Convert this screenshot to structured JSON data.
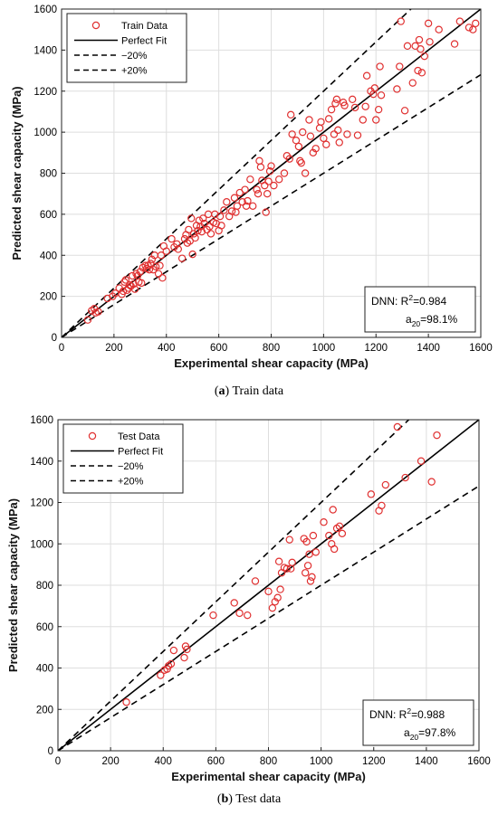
{
  "chart_data": [
    {
      "type": "scatter",
      "caption_letter": "a",
      "caption_text": "Train data",
      "xlabel": "Experimental shear capacity (MPa)",
      "ylabel": "Predicted shear capacity (MPa)",
      "xlim": [
        0,
        1600
      ],
      "ylim": [
        0,
        1600
      ],
      "xticks": [
        0,
        200,
        400,
        600,
        800,
        1000,
        1200,
        1400,
        1600
      ],
      "yticks": [
        0,
        200,
        400,
        600,
        800,
        1000,
        1200,
        1400,
        1600
      ],
      "grid": true,
      "legend_position": "top-left",
      "legend": [
        "Train Data",
        "Perfect Fit",
        "−20%",
        "+20%"
      ],
      "annotation_model": "DNN: R",
      "annotation_r2": "=0.984",
      "annotation_a20_value": "=98.1%",
      "marker_color": "#e03030",
      "series": [
        {
          "name": "Train Data",
          "points": [
            [
              100,
              85
            ],
            [
              115,
              130
            ],
            [
              125,
              140
            ],
            [
              130,
              120
            ],
            [
              140,
              125
            ],
            [
              175,
              190
            ],
            [
              195,
              200
            ],
            [
              205,
              215
            ],
            [
              220,
              240
            ],
            [
              230,
              210
            ],
            [
              235,
              225
            ],
            [
              240,
              270
            ],
            [
              245,
              280
            ],
            [
              250,
              230
            ],
            [
              255,
              240
            ],
            [
              260,
              255
            ],
            [
              265,
              250
            ],
            [
              270,
              300
            ],
            [
              275,
              260
            ],
            [
              280,
              235
            ],
            [
              285,
              310
            ],
            [
              290,
              300
            ],
            [
              295,
              270
            ],
            [
              300,
              320
            ],
            [
              305,
              265
            ],
            [
              310,
              340
            ],
            [
              320,
              350
            ],
            [
              325,
              335
            ],
            [
              330,
              350
            ],
            [
              335,
              330
            ],
            [
              340,
              360
            ],
            [
              345,
              380
            ],
            [
              350,
              330
            ],
            [
              355,
              400
            ],
            [
              360,
              345
            ],
            [
              370,
              310
            ],
            [
              375,
              350
            ],
            [
              380,
              400
            ],
            [
              385,
              290
            ],
            [
              390,
              445
            ],
            [
              400,
              420
            ],
            [
              420,
              480
            ],
            [
              430,
              440
            ],
            [
              440,
              455
            ],
            [
              445,
              430
            ],
            [
              460,
              385
            ],
            [
              470,
              480
            ],
            [
              475,
              500
            ],
            [
              480,
              460
            ],
            [
              485,
              525
            ],
            [
              490,
              470
            ],
            [
              495,
              580
            ],
            [
              500,
              405
            ],
            [
              505,
              505
            ],
            [
              510,
              485
            ],
            [
              515,
              545
            ],
            [
              520,
              520
            ],
            [
              525,
              570
            ],
            [
              530,
              540
            ],
            [
              535,
              515
            ],
            [
              540,
              580
            ],
            [
              545,
              555
            ],
            [
              555,
              525
            ],
            [
              560,
              600
            ],
            [
              565,
              540
            ],
            [
              570,
              505
            ],
            [
              580,
              560
            ],
            [
              585,
              600
            ],
            [
              590,
              555
            ],
            [
              600,
              520
            ],
            [
              605,
              590
            ],
            [
              610,
              545
            ],
            [
              620,
              620
            ],
            [
              630,
              660
            ],
            [
              640,
              590
            ],
            [
              650,
              615
            ],
            [
              660,
              680
            ],
            [
              665,
              610
            ],
            [
              670,
              640
            ],
            [
              680,
              705
            ],
            [
              690,
              660
            ],
            [
              700,
              720
            ],
            [
              705,
              640
            ],
            [
              710,
              665
            ],
            [
              720,
              770
            ],
            [
              730,
              640
            ],
            [
              745,
              720
            ],
            [
              750,
              700
            ],
            [
              755,
              860
            ],
            [
              760,
              830
            ],
            [
              765,
              765
            ],
            [
              775,
              740
            ],
            [
              780,
              610
            ],
            [
              785,
              700
            ],
            [
              790,
              760
            ],
            [
              795,
              810
            ],
            [
              800,
              835
            ],
            [
              810,
              740
            ],
            [
              830,
              770
            ],
            [
              850,
              800
            ],
            [
              860,
              885
            ],
            [
              870,
              870
            ],
            [
              875,
              1085
            ],
            [
              880,
              990
            ],
            [
              895,
              960
            ],
            [
              905,
              930
            ],
            [
              910,
              860
            ],
            [
              915,
              850
            ],
            [
              920,
              1000
            ],
            [
              930,
              800
            ],
            [
              945,
              1060
            ],
            [
              950,
              980
            ],
            [
              960,
              900
            ],
            [
              970,
              920
            ],
            [
              985,
              1020
            ],
            [
              990,
              1050
            ],
            [
              1000,
              970
            ],
            [
              1010,
              940
            ],
            [
              1020,
              1065
            ],
            [
              1030,
              1110
            ],
            [
              1040,
              990
            ],
            [
              1045,
              1140
            ],
            [
              1050,
              1160
            ],
            [
              1055,
              1010
            ],
            [
              1060,
              950
            ],
            [
              1075,
              1145
            ],
            [
              1080,
              1130
            ],
            [
              1090,
              990
            ],
            [
              1110,
              1160
            ],
            [
              1120,
              1120
            ],
            [
              1130,
              985
            ],
            [
              1150,
              1060
            ],
            [
              1160,
              1125
            ],
            [
              1165,
              1275
            ],
            [
              1180,
              1200
            ],
            [
              1190,
              1185
            ],
            [
              1195,
              1215
            ],
            [
              1200,
              1060
            ],
            [
              1210,
              1110
            ],
            [
              1215,
              1320
            ],
            [
              1220,
              1180
            ],
            [
              1280,
              1210
            ],
            [
              1290,
              1320
            ],
            [
              1295,
              1540
            ],
            [
              1310,
              1105
            ],
            [
              1320,
              1420
            ],
            [
              1340,
              1240
            ],
            [
              1350,
              1420
            ],
            [
              1360,
              1300
            ],
            [
              1365,
              1450
            ],
            [
              1370,
              1405
            ],
            [
              1375,
              1290
            ],
            [
              1385,
              1370
            ],
            [
              1400,
              1530
            ],
            [
              1405,
              1440
            ],
            [
              1440,
              1500
            ],
            [
              1500,
              1430
            ],
            [
              1520,
              1540
            ],
            [
              1555,
              1510
            ],
            [
              1570,
              1500
            ],
            [
              1580,
              1530
            ]
          ]
        }
      ]
    },
    {
      "type": "scatter",
      "caption_letter": "b",
      "caption_text": "Test data",
      "xlabel": "Experimental shear capacity (MPa)",
      "ylabel": "Predicted shear capacity (MPa)",
      "xlim": [
        0,
        1600
      ],
      "ylim": [
        0,
        1600
      ],
      "xticks": [
        0,
        200,
        400,
        600,
        800,
        1000,
        1200,
        1400,
        1600
      ],
      "yticks": [
        0,
        200,
        400,
        600,
        800,
        1000,
        1200,
        1400,
        1600
      ],
      "grid": true,
      "legend_position": "top-left",
      "legend": [
        "Test Data",
        "Perfect Fit",
        "−20%",
        "+20%"
      ],
      "annotation_model": "DNN: R",
      "annotation_r2": "=0.988",
      "annotation_a20_value": "=97.8%",
      "marker_color": "#e03030",
      "series": [
        {
          "name": "Test Data",
          "points": [
            [
              260,
              235
            ],
            [
              390,
              365
            ],
            [
              405,
              390
            ],
            [
              415,
              395
            ],
            [
              420,
              410
            ],
            [
              430,
              420
            ],
            [
              440,
              485
            ],
            [
              480,
              450
            ],
            [
              485,
              505
            ],
            [
              490,
              490
            ],
            [
              590,
              655
            ],
            [
              670,
              715
            ],
            [
              690,
              665
            ],
            [
              720,
              655
            ],
            [
              750,
              820
            ],
            [
              800,
              770
            ],
            [
              815,
              690
            ],
            [
              825,
              720
            ],
            [
              835,
              740
            ],
            [
              840,
              915
            ],
            [
              845,
              780
            ],
            [
              850,
              860
            ],
            [
              860,
              885
            ],
            [
              870,
              880
            ],
            [
              880,
              1020
            ],
            [
              885,
              880
            ],
            [
              890,
              910
            ],
            [
              935,
              1025
            ],
            [
              940,
              860
            ],
            [
              945,
              1010
            ],
            [
              950,
              895
            ],
            [
              955,
              950
            ],
            [
              960,
              820
            ],
            [
              965,
              840
            ],
            [
              970,
              1040
            ],
            [
              980,
              960
            ],
            [
              1010,
              1105
            ],
            [
              1030,
              1040
            ],
            [
              1040,
              1000
            ],
            [
              1045,
              1165
            ],
            [
              1050,
              975
            ],
            [
              1060,
              1075
            ],
            [
              1070,
              1085
            ],
            [
              1080,
              1050
            ],
            [
              1190,
              1240
            ],
            [
              1220,
              1160
            ],
            [
              1230,
              1185
            ],
            [
              1245,
              1285
            ],
            [
              1290,
              1565
            ],
            [
              1320,
              1320
            ],
            [
              1380,
              1400
            ],
            [
              1420,
              1300
            ],
            [
              1440,
              1525
            ]
          ]
        }
      ]
    }
  ]
}
